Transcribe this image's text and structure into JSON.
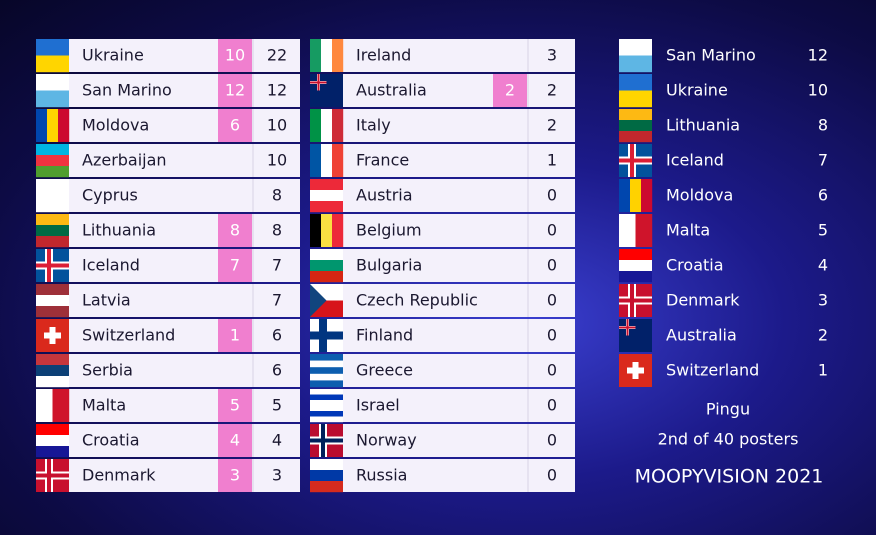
{
  "left": {
    "rows": [
      {
        "country": "Ukraine",
        "points": 10,
        "total": 22
      },
      {
        "country": "San Marino",
        "points": 12,
        "total": 12
      },
      {
        "country": "Moldova",
        "points": 6,
        "total": 10
      },
      {
        "country": "Azerbaijan",
        "total": 10
      },
      {
        "country": "Cyprus",
        "total": 8
      },
      {
        "country": "Lithuania",
        "points": 8,
        "total": 8
      },
      {
        "country": "Iceland",
        "points": 7,
        "total": 7
      },
      {
        "country": "Latvia",
        "total": 7
      },
      {
        "country": "Switzerland",
        "points": 1,
        "total": 6
      },
      {
        "country": "Serbia",
        "total": 6
      },
      {
        "country": "Malta",
        "points": 5,
        "total": 5
      },
      {
        "country": "Croatia",
        "points": 4,
        "total": 4
      },
      {
        "country": "Denmark",
        "points": 3,
        "total": 3
      }
    ]
  },
  "middle": {
    "rows": [
      {
        "country": "Ireland",
        "total": 3
      },
      {
        "country": "Australia",
        "points": 2,
        "total": 2
      },
      {
        "country": "Italy",
        "total": 2
      },
      {
        "country": "France",
        "total": 1
      },
      {
        "country": "Austria",
        "total": 0
      },
      {
        "country": "Belgium",
        "total": 0
      },
      {
        "country": "Bulgaria",
        "total": 0
      },
      {
        "country": "Czech Republic",
        "total": 0
      },
      {
        "country": "Finland",
        "total": 0
      },
      {
        "country": "Greece",
        "total": 0
      },
      {
        "country": "Israel",
        "total": 0
      },
      {
        "country": "Norway",
        "total": 0
      },
      {
        "country": "Russia",
        "total": 0
      }
    ]
  },
  "voter": {
    "name": "Pingu",
    "rank": "2nd of 40 posters",
    "points": [
      {
        "country": "San Marino",
        "points": 12
      },
      {
        "country": "Ukraine",
        "points": 10
      },
      {
        "country": "Lithuania",
        "points": 8
      },
      {
        "country": "Iceland",
        "points": 7
      },
      {
        "country": "Moldova",
        "points": 6
      },
      {
        "country": "Malta",
        "points": 5
      },
      {
        "country": "Croatia",
        "points": 4
      },
      {
        "country": "Denmark",
        "points": 3
      },
      {
        "country": "Australia",
        "points": 2
      },
      {
        "country": "Switzerland",
        "points": 1
      }
    ]
  },
  "footer": "MOOPYVISION 2021"
}
